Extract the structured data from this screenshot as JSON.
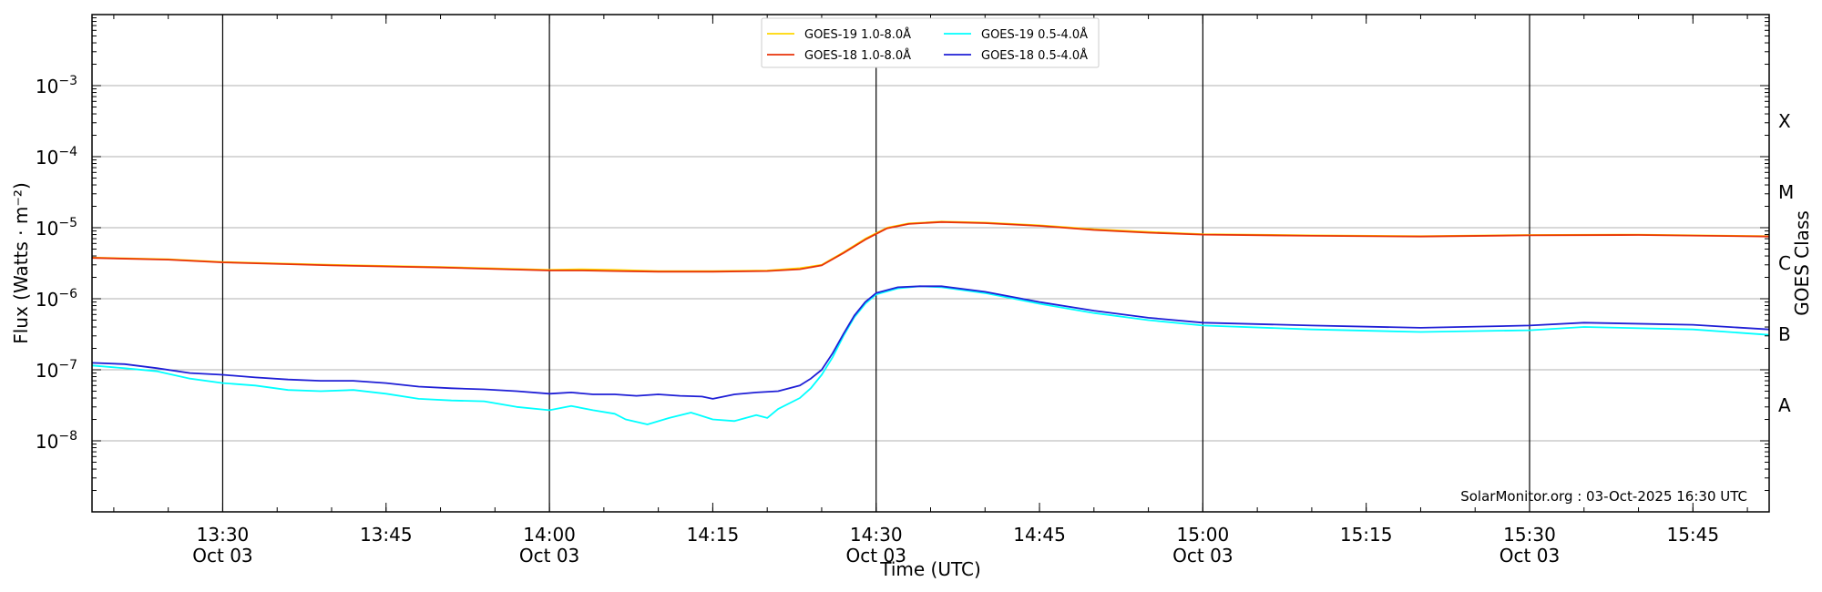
{
  "chart_data": {
    "type": "line",
    "xlabel": "Time (UTC)",
    "ylabel": "Flux (Watts · m⁻²)",
    "y2label": "GOES Class",
    "yscale": "log",
    "ylim": [
      1e-09,
      0.01
    ],
    "xlim": [
      "13:18",
      "15:52"
    ],
    "grid": "horizontal at decades",
    "x_date_label": "Oct 03",
    "x_ticks": [
      {
        "time": "13:30",
        "label": "13:30",
        "sub": "Oct 03",
        "line": true
      },
      {
        "time": "13:45",
        "label": "13:45",
        "sub": "",
        "line": false
      },
      {
        "time": "14:00",
        "label": "14:00",
        "sub": "Oct 03",
        "line": true
      },
      {
        "time": "14:15",
        "label": "14:15",
        "sub": "",
        "line": false
      },
      {
        "time": "14:30",
        "label": "14:30",
        "sub": "Oct 03",
        "line": true
      },
      {
        "time": "14:45",
        "label": "14:45",
        "sub": "",
        "line": false
      },
      {
        "time": "15:00",
        "label": "15:00",
        "sub": "Oct 03",
        "line": true
      },
      {
        "time": "15:15",
        "label": "15:15",
        "sub": "",
        "line": false
      },
      {
        "time": "15:30",
        "label": "15:30",
        "sub": "Oct 03",
        "line": true
      },
      {
        "time": "15:45",
        "label": "15:45",
        "sub": "",
        "line": false
      }
    ],
    "y_ticks": [
      {
        "value": 1e-08,
        "base": "10",
        "exp": "−8"
      },
      {
        "value": 1e-07,
        "base": "10",
        "exp": "−7"
      },
      {
        "value": 1e-06,
        "base": "10",
        "exp": "−6"
      },
      {
        "value": 1e-05,
        "base": "10",
        "exp": "−5"
      },
      {
        "value": 0.0001,
        "base": "10",
        "exp": "−4"
      },
      {
        "value": 0.001,
        "base": "10",
        "exp": "−3"
      }
    ],
    "goes_classes": [
      {
        "label": "A",
        "value": 3.16e-08
      },
      {
        "label": "B",
        "value": 3.16e-07
      },
      {
        "label": "C",
        "value": 3.16e-06
      },
      {
        "label": "M",
        "value": 3.16e-05
      },
      {
        "label": "X",
        "value": 0.000316
      }
    ],
    "legend_position": "top-center",
    "series": [
      {
        "name": "GOES-19 1.0-8.0Å",
        "color": "#FFD700",
        "points": [
          [
            "13:18",
            3.8e-06
          ],
          [
            "13:25",
            3.6e-06
          ],
          [
            "13:30",
            3.3e-06
          ],
          [
            "13:40",
            3e-06
          ],
          [
            "13:50",
            2.8e-06
          ],
          [
            "14:00",
            2.55e-06
          ],
          [
            "14:03",
            2.6e-06
          ],
          [
            "14:06",
            2.55e-06
          ],
          [
            "14:10",
            2.45e-06
          ],
          [
            "14:15",
            2.45e-06
          ],
          [
            "14:20",
            2.5e-06
          ],
          [
            "14:23",
            2.7e-06
          ],
          [
            "14:25",
            3e-06
          ],
          [
            "14:27",
            4.5e-06
          ],
          [
            "14:29",
            7e-06
          ],
          [
            "14:31",
            1e-05
          ],
          [
            "14:33",
            1.15e-05
          ],
          [
            "14:36",
            1.22e-05
          ],
          [
            "14:40",
            1.18e-05
          ],
          [
            "14:45",
            1.08e-05
          ],
          [
            "14:50",
            9.5e-06
          ],
          [
            "14:55",
            8.7e-06
          ],
          [
            "15:00",
            8.1e-06
          ],
          [
            "15:10",
            7.8e-06
          ],
          [
            "15:20",
            7.6e-06
          ],
          [
            "15:30",
            7.9e-06
          ],
          [
            "15:40",
            8e-06
          ],
          [
            "15:52",
            7.6e-06
          ]
        ]
      },
      {
        "name": "GOES-18 1.0-8.0Å",
        "color": "#E8320A",
        "points": [
          [
            "13:18",
            3.75e-06
          ],
          [
            "13:25",
            3.55e-06
          ],
          [
            "13:30",
            3.25e-06
          ],
          [
            "13:40",
            2.95e-06
          ],
          [
            "13:50",
            2.75e-06
          ],
          [
            "14:00",
            2.5e-06
          ],
          [
            "14:03",
            2.5e-06
          ],
          [
            "14:06",
            2.45e-06
          ],
          [
            "14:10",
            2.4e-06
          ],
          [
            "14:15",
            2.4e-06
          ],
          [
            "14:20",
            2.45e-06
          ],
          [
            "14:23",
            2.6e-06
          ],
          [
            "14:25",
            2.95e-06
          ],
          [
            "14:27",
            4.4e-06
          ],
          [
            "14:29",
            6.8e-06
          ],
          [
            "14:31",
            9.8e-06
          ],
          [
            "14:33",
            1.13e-05
          ],
          [
            "14:36",
            1.2e-05
          ],
          [
            "14:40",
            1.16e-05
          ],
          [
            "14:45",
            1.06e-05
          ],
          [
            "14:50",
            9.3e-06
          ],
          [
            "14:55",
            8.5e-06
          ],
          [
            "15:00",
            8e-06
          ],
          [
            "15:10",
            7.7e-06
          ],
          [
            "15:20",
            7.5e-06
          ],
          [
            "15:30",
            7.8e-06
          ],
          [
            "15:40",
            7.9e-06
          ],
          [
            "15:52",
            7.5e-06
          ]
        ]
      },
      {
        "name": "GOES-19 0.5-4.0Å",
        "color": "#00FFFF",
        "points": [
          [
            "13:18",
            1.15e-07
          ],
          [
            "13:21",
            1.05e-07
          ],
          [
            "13:24",
            9.5e-08
          ],
          [
            "13:27",
            7.5e-08
          ],
          [
            "13:30",
            6.5e-08
          ],
          [
            "13:33",
            6e-08
          ],
          [
            "13:36",
            5.2e-08
          ],
          [
            "13:39",
            5e-08
          ],
          [
            "13:42",
            5.2e-08
          ],
          [
            "13:45",
            4.6e-08
          ],
          [
            "13:48",
            3.9e-08
          ],
          [
            "13:51",
            3.7e-08
          ],
          [
            "13:54",
            3.6e-08
          ],
          [
            "13:57",
            3e-08
          ],
          [
            "14:00",
            2.7e-08
          ],
          [
            "14:02",
            3.1e-08
          ],
          [
            "14:04",
            2.7e-08
          ],
          [
            "14:06",
            2.4e-08
          ],
          [
            "14:07",
            2e-08
          ],
          [
            "14:09",
            1.7e-08
          ],
          [
            "14:11",
            2.1e-08
          ],
          [
            "14:13",
            2.5e-08
          ],
          [
            "14:15",
            2e-08
          ],
          [
            "14:17",
            1.9e-08
          ],
          [
            "14:19",
            2.3e-08
          ],
          [
            "14:20",
            2.1e-08
          ],
          [
            "14:21",
            2.8e-08
          ],
          [
            "14:23",
            4e-08
          ],
          [
            "14:24",
            5.5e-08
          ],
          [
            "14:25",
            8.5e-08
          ],
          [
            "14:26",
            1.5e-07
          ],
          [
            "14:27",
            3e-07
          ],
          [
            "14:28",
            5.5e-07
          ],
          [
            "14:29",
            8.5e-07
          ],
          [
            "14:30",
            1.15e-06
          ],
          [
            "14:32",
            1.4e-06
          ],
          [
            "14:34",
            1.5e-06
          ],
          [
            "14:36",
            1.45e-06
          ],
          [
            "14:40",
            1.2e-06
          ],
          [
            "14:45",
            8.5e-07
          ],
          [
            "14:50",
            6.3e-07
          ],
          [
            "14:55",
            5e-07
          ],
          [
            "15:00",
            4.2e-07
          ],
          [
            "15:10",
            3.7e-07
          ],
          [
            "15:20",
            3.4e-07
          ],
          [
            "15:30",
            3.6e-07
          ],
          [
            "15:35",
            4e-07
          ],
          [
            "15:45",
            3.7e-07
          ],
          [
            "15:52",
            3.1e-07
          ]
        ]
      },
      {
        "name": "GOES-18 0.5-4.0Å",
        "color": "#1F1FD6",
        "points": [
          [
            "13:18",
            1.25e-07
          ],
          [
            "13:21",
            1.2e-07
          ],
          [
            "13:24",
            1.05e-07
          ],
          [
            "13:27",
            9e-08
          ],
          [
            "13:30",
            8.5e-08
          ],
          [
            "13:33",
            7.8e-08
          ],
          [
            "13:36",
            7.3e-08
          ],
          [
            "13:39",
            7e-08
          ],
          [
            "13:42",
            7e-08
          ],
          [
            "13:45",
            6.5e-08
          ],
          [
            "13:48",
            5.8e-08
          ],
          [
            "13:51",
            5.5e-08
          ],
          [
            "13:54",
            5.3e-08
          ],
          [
            "13:57",
            5e-08
          ],
          [
            "14:00",
            4.6e-08
          ],
          [
            "14:02",
            4.8e-08
          ],
          [
            "14:04",
            4.5e-08
          ],
          [
            "14:06",
            4.5e-08
          ],
          [
            "14:08",
            4.3e-08
          ],
          [
            "14:10",
            4.5e-08
          ],
          [
            "14:12",
            4.3e-08
          ],
          [
            "14:14",
            4.2e-08
          ],
          [
            "14:15",
            3.9e-08
          ],
          [
            "14:17",
            4.5e-08
          ],
          [
            "14:19",
            4.8e-08
          ],
          [
            "14:21",
            5e-08
          ],
          [
            "14:23",
            6e-08
          ],
          [
            "14:24",
            7.5e-08
          ],
          [
            "14:25",
            1e-07
          ],
          [
            "14:26",
            1.7e-07
          ],
          [
            "14:27",
            3.2e-07
          ],
          [
            "14:28",
            5.8e-07
          ],
          [
            "14:29",
            9e-07
          ],
          [
            "14:30",
            1.2e-06
          ],
          [
            "14:32",
            1.45e-06
          ],
          [
            "14:34",
            1.5e-06
          ],
          [
            "14:36",
            1.5e-06
          ],
          [
            "14:40",
            1.25e-06
          ],
          [
            "14:45",
            9e-07
          ],
          [
            "14:50",
            6.8e-07
          ],
          [
            "14:55",
            5.4e-07
          ],
          [
            "15:00",
            4.6e-07
          ],
          [
            "15:10",
            4.2e-07
          ],
          [
            "15:20",
            3.9e-07
          ],
          [
            "15:30",
            4.2e-07
          ],
          [
            "15:35",
            4.6e-07
          ],
          [
            "15:45",
            4.3e-07
          ],
          [
            "15:52",
            3.7e-07
          ]
        ]
      }
    ]
  },
  "credit": "SolarMonitor.org : 03-Oct-2025 16:30 UTC"
}
